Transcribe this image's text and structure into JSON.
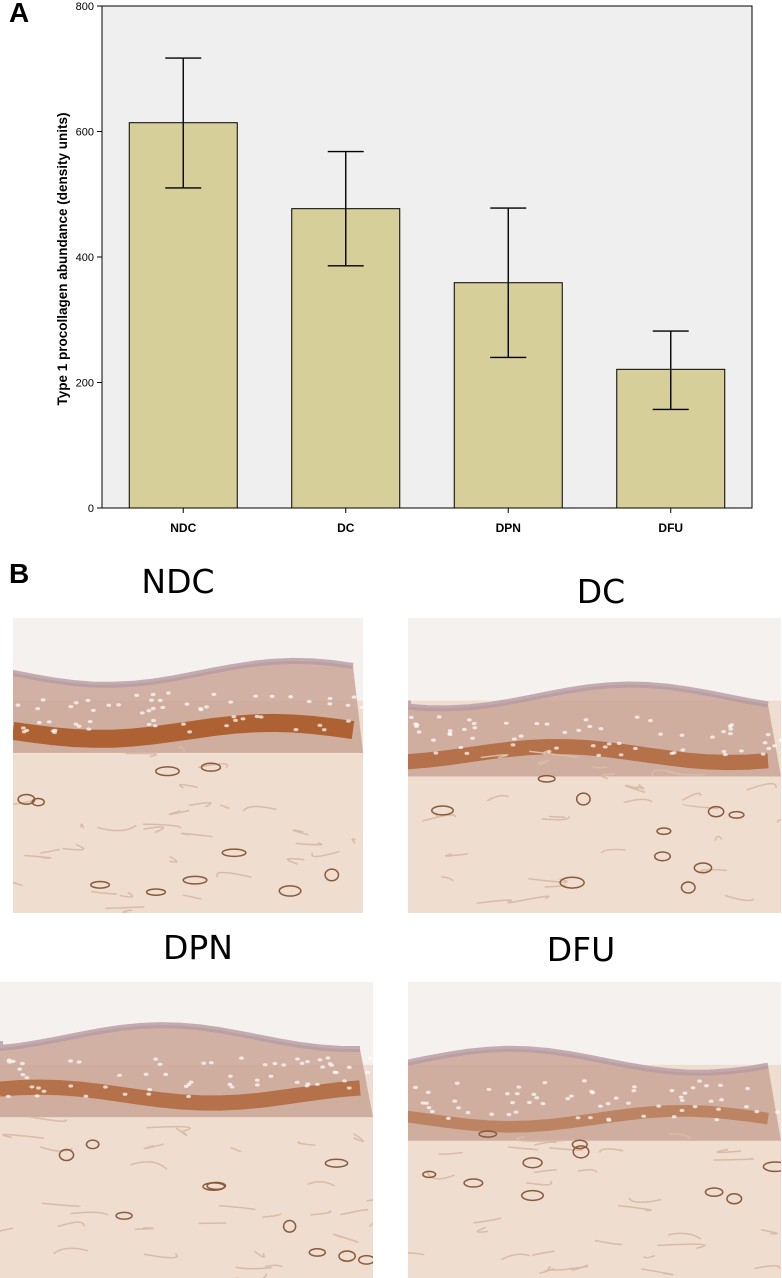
{
  "panel_a_label": "A",
  "panel_b_label": "B",
  "chart_data": {
    "type": "bar",
    "categories": [
      "NDC",
      "DC",
      "DPN",
      "DFU"
    ],
    "values": [
      614,
      477,
      359,
      221
    ],
    "error_bars": {
      "upper": [
        717,
        568,
        478,
        282
      ],
      "lower": [
        510,
        386,
        240,
        157
      ]
    },
    "ylabel": "Type 1 procollagen abundance (density units)",
    "xlabel": "",
    "ylim": [
      0,
      800
    ],
    "yticks": [
      0,
      200,
      400,
      600,
      800
    ],
    "grid": false,
    "bar_color": "#d6cf9a",
    "plot_background": "#efefef"
  },
  "micrographs": [
    {
      "title": "NDC",
      "stain_intensity": "strong"
    },
    {
      "title": "DC",
      "stain_intensity": "moderate"
    },
    {
      "title": "DPN",
      "stain_intensity": "moderate"
    },
    {
      "title": "DFU",
      "stain_intensity": "weak"
    }
  ]
}
